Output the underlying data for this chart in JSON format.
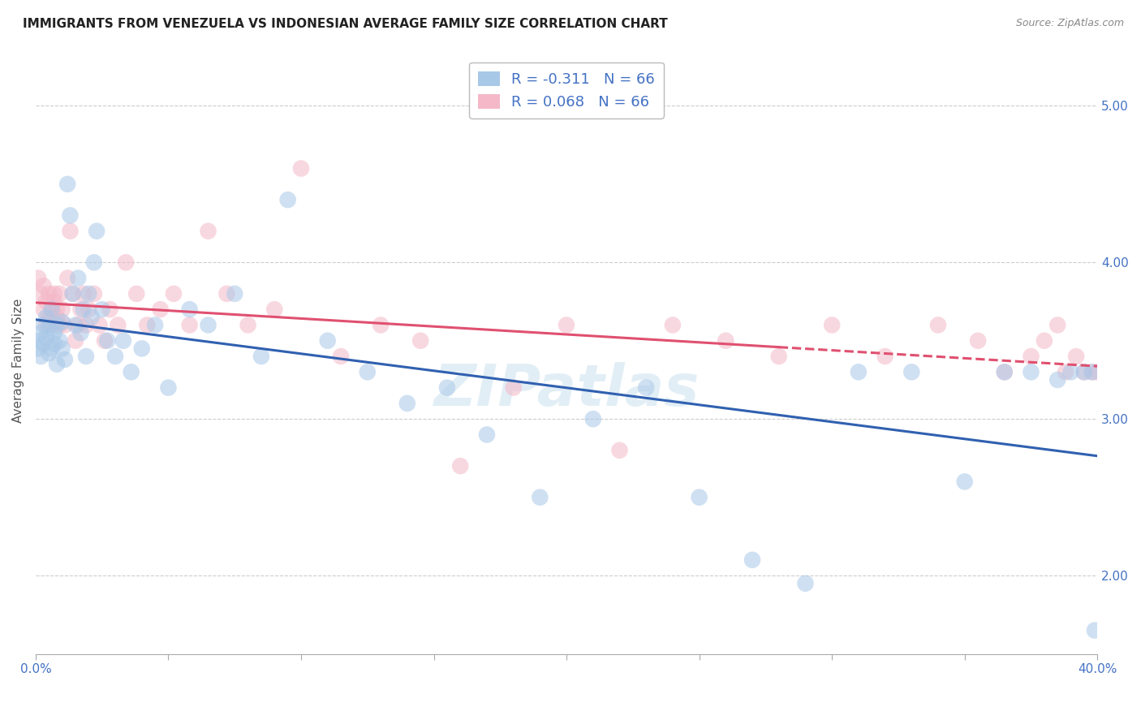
{
  "title": "IMMIGRANTS FROM VENEZUELA VS INDONESIAN AVERAGE FAMILY SIZE CORRELATION CHART",
  "source_text": "Source: ZipAtlas.com",
  "ylabel": "Average Family Size",
  "xmin": 0.0,
  "xmax": 0.4,
  "ymin": 1.5,
  "ymax": 5.25,
  "yticks": [
    2.0,
    3.0,
    4.0,
    5.0
  ],
  "xticks": [
    0.0,
    0.05,
    0.1,
    0.15,
    0.2,
    0.25,
    0.3,
    0.35,
    0.4
  ],
  "legend_entries": [
    {
      "label": "R = -0.311   N = 66",
      "color": "#a8c8e8"
    },
    {
      "label": "R = 0.068   N = 66",
      "color": "#f4b8c8"
    }
  ],
  "series_venezuela": {
    "color": "#a8c8e8",
    "trend_color": "#3060b0",
    "x": [
      0.001,
      0.001,
      0.002,
      0.002,
      0.003,
      0.003,
      0.004,
      0.004,
      0.005,
      0.005,
      0.006,
      0.006,
      0.007,
      0.007,
      0.008,
      0.008,
      0.009,
      0.01,
      0.01,
      0.011,
      0.012,
      0.013,
      0.014,
      0.015,
      0.016,
      0.017,
      0.018,
      0.019,
      0.02,
      0.021,
      0.022,
      0.023,
      0.025,
      0.027,
      0.03,
      0.033,
      0.036,
      0.04,
      0.045,
      0.05,
      0.058,
      0.065,
      0.075,
      0.085,
      0.095,
      0.11,
      0.125,
      0.14,
      0.155,
      0.17,
      0.19,
      0.21,
      0.23,
      0.25,
      0.27,
      0.29,
      0.31,
      0.33,
      0.35,
      0.365,
      0.375,
      0.385,
      0.39,
      0.395,
      0.398,
      0.399
    ],
    "y": [
      3.5,
      3.45,
      3.55,
      3.4,
      3.6,
      3.48,
      3.52,
      3.65,
      3.42,
      3.58,
      3.7,
      3.45,
      3.55,
      3.48,
      3.6,
      3.35,
      3.5,
      3.45,
      3.62,
      3.38,
      4.5,
      4.3,
      3.8,
      3.6,
      3.9,
      3.55,
      3.7,
      3.4,
      3.8,
      3.65,
      4.0,
      4.2,
      3.7,
      3.5,
      3.4,
      3.5,
      3.3,
      3.45,
      3.6,
      3.2,
      3.7,
      3.6,
      3.8,
      3.4,
      4.4,
      3.5,
      3.3,
      3.1,
      3.2,
      2.9,
      2.5,
      3.0,
      3.2,
      2.5,
      2.1,
      1.95,
      3.3,
      3.3,
      2.6,
      3.3,
      3.3,
      3.25,
      3.3,
      3.3,
      3.3,
      1.65
    ]
  },
  "series_indonesian": {
    "color": "#f4b8c8",
    "trend_color": "#e05070",
    "x": [
      0.001,
      0.002,
      0.003,
      0.003,
      0.004,
      0.004,
      0.005,
      0.005,
      0.006,
      0.006,
      0.007,
      0.007,
      0.008,
      0.008,
      0.009,
      0.009,
      0.01,
      0.011,
      0.012,
      0.013,
      0.014,
      0.015,
      0.016,
      0.017,
      0.018,
      0.019,
      0.02,
      0.022,
      0.024,
      0.026,
      0.028,
      0.031,
      0.034,
      0.038,
      0.042,
      0.047,
      0.052,
      0.058,
      0.065,
      0.072,
      0.08,
      0.09,
      0.1,
      0.115,
      0.13,
      0.145,
      0.16,
      0.18,
      0.2,
      0.22,
      0.24,
      0.26,
      0.28,
      0.3,
      0.32,
      0.34,
      0.355,
      0.365,
      0.375,
      0.38,
      0.385,
      0.388,
      0.392,
      0.395,
      0.398,
      0.4
    ],
    "y": [
      3.9,
      3.8,
      3.7,
      3.85,
      3.6,
      3.75,
      3.8,
      3.65,
      3.7,
      3.6,
      3.75,
      3.8,
      3.65,
      3.7,
      3.6,
      3.8,
      3.7,
      3.6,
      3.9,
      4.2,
      3.8,
      3.5,
      3.6,
      3.7,
      3.8,
      3.6,
      3.7,
      3.8,
      3.6,
      3.5,
      3.7,
      3.6,
      4.0,
      3.8,
      3.6,
      3.7,
      3.8,
      3.6,
      4.2,
      3.8,
      3.6,
      3.7,
      4.6,
      3.4,
      3.6,
      3.5,
      2.7,
      3.2,
      3.6,
      2.8,
      3.6,
      3.5,
      3.4,
      3.6,
      3.4,
      3.6,
      3.5,
      3.3,
      3.4,
      3.5,
      3.6,
      3.3,
      3.4,
      3.3,
      3.3,
      3.3
    ]
  },
  "watermark": "ZIPatlas",
  "background_color": "#ffffff",
  "title_fontsize": 11,
  "axis_label_fontsize": 11,
  "tick_fontsize": 11
}
